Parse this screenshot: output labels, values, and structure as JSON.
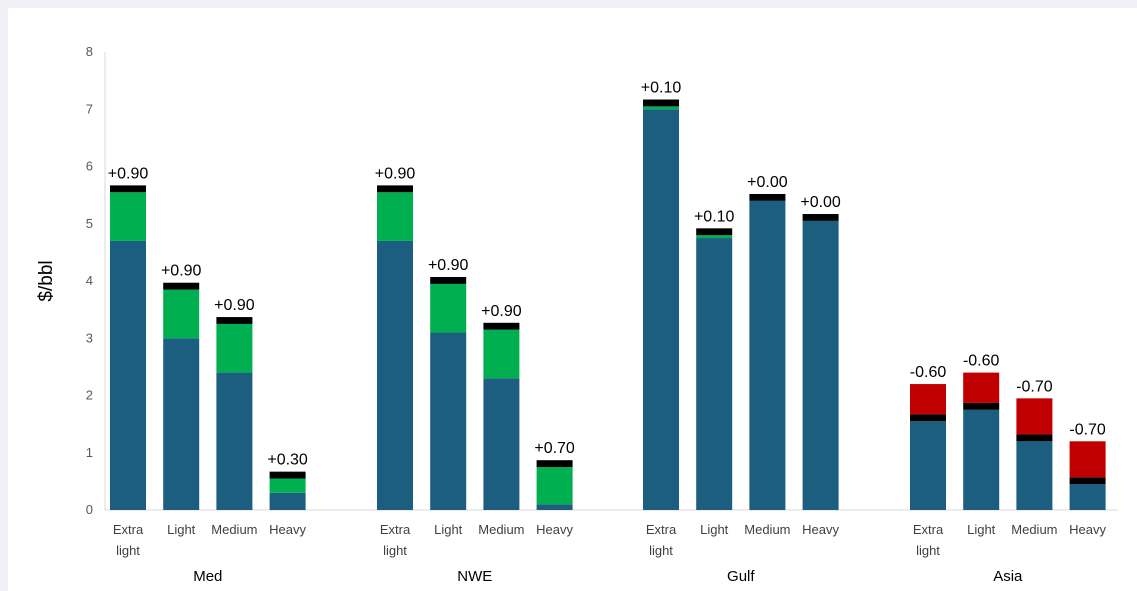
{
  "chart_data": {
    "type": "bar",
    "stacked": true,
    "ylabel": "$/bbl",
    "ylim": [
      0,
      8
    ],
    "yticks": [
      0,
      1,
      2,
      3,
      4,
      5,
      6,
      7,
      8
    ],
    "grid": false,
    "legend": "none",
    "groups": [
      {
        "name": "Med",
        "bars": [
          {
            "category": [
              "Extra",
              "light"
            ],
            "base": 4.7,
            "black": 0.12,
            "change": 0.85,
            "change_sign": "positive",
            "label": "+0.90"
          },
          {
            "category": [
              "Light"
            ],
            "base": 3.0,
            "black": 0.12,
            "change": 0.85,
            "change_sign": "positive",
            "label": "+0.90"
          },
          {
            "category": [
              "Medium"
            ],
            "base": 2.4,
            "black": 0.12,
            "change": 0.85,
            "change_sign": "positive",
            "label": "+0.90"
          },
          {
            "category": [
              "Heavy"
            ],
            "base": 0.3,
            "black": 0.12,
            "change": 0.25,
            "change_sign": "positive",
            "label": "+0.30"
          }
        ]
      },
      {
        "name": "NWE",
        "bars": [
          {
            "category": [
              "Extra",
              "light"
            ],
            "base": 4.7,
            "black": 0.12,
            "change": 0.85,
            "change_sign": "positive",
            "label": "+0.90"
          },
          {
            "category": [
              "Light"
            ],
            "base": 3.1,
            "black": 0.12,
            "change": 0.85,
            "change_sign": "positive",
            "label": "+0.90"
          },
          {
            "category": [
              "Medium"
            ],
            "base": 2.3,
            "black": 0.12,
            "change": 0.85,
            "change_sign": "positive",
            "label": "+0.90"
          },
          {
            "category": [
              "Heavy"
            ],
            "base": 0.1,
            "black": 0.12,
            "change": 0.65,
            "change_sign": "positive",
            "label": "+0.70"
          }
        ]
      },
      {
        "name": "Gulf",
        "bars": [
          {
            "category": [
              "Extra",
              "light"
            ],
            "base": 7.0,
            "black": 0.12,
            "change": 0.05,
            "change_sign": "positive",
            "label": "+0.10"
          },
          {
            "category": [
              "Light"
            ],
            "base": 4.75,
            "black": 0.12,
            "change": 0.05,
            "change_sign": "positive",
            "label": "+0.10"
          },
          {
            "category": [
              "Medium"
            ],
            "base": 5.4,
            "black": 0.12,
            "change": 0.0,
            "change_sign": "positive",
            "label": "+0.00"
          },
          {
            "category": [
              "Heavy"
            ],
            "base": 5.05,
            "black": 0.12,
            "change": 0.0,
            "change_sign": "positive",
            "label": "+0.00"
          }
        ]
      },
      {
        "name": "Asia",
        "bars": [
          {
            "category": [
              "Extra",
              "light"
            ],
            "base": 1.55,
            "black": 0.12,
            "change": 0.53,
            "change_sign": "negative",
            "label": "-0.60"
          },
          {
            "category": [
              "Light"
            ],
            "base": 1.75,
            "black": 0.12,
            "change": 0.53,
            "change_sign": "negative",
            "label": "-0.60"
          },
          {
            "category": [
              "Medium"
            ],
            "base": 1.2,
            "black": 0.12,
            "change": 0.63,
            "change_sign": "negative",
            "label": "-0.70"
          },
          {
            "category": [
              "Heavy"
            ],
            "base": 0.45,
            "black": 0.12,
            "change": 0.63,
            "change_sign": "negative",
            "label": "-0.70"
          }
        ]
      }
    ]
  },
  "colors": {
    "base": "#1b5e80",
    "black": "#000000",
    "positive": "#00b050",
    "negative": "#c00000",
    "axis": "#d9d9d9"
  }
}
